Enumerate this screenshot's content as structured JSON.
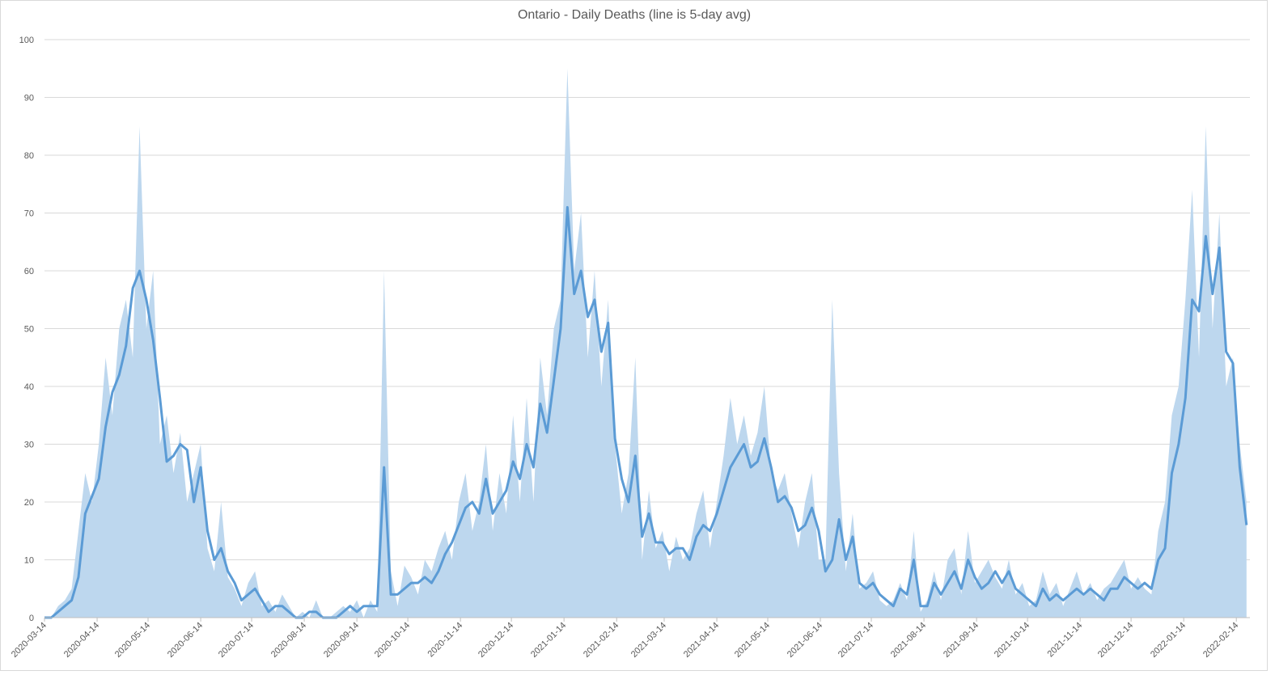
{
  "chart_data": {
    "type": "line",
    "title": "Ontario - Daily Deaths (line is 5-day avg)",
    "x": [
      "2020-03-14",
      "2020-03-18",
      "2020-03-22",
      "2020-03-26",
      "2020-03-30",
      "2020-04-03",
      "2020-04-07",
      "2020-04-11",
      "2020-04-15",
      "2020-04-19",
      "2020-04-23",
      "2020-04-27",
      "2020-05-01",
      "2020-05-05",
      "2020-05-09",
      "2020-05-13",
      "2020-05-17",
      "2020-05-21",
      "2020-05-25",
      "2020-05-29",
      "2020-06-02",
      "2020-06-06",
      "2020-06-10",
      "2020-06-14",
      "2020-06-18",
      "2020-06-22",
      "2020-06-26",
      "2020-06-30",
      "2020-07-04",
      "2020-07-08",
      "2020-07-12",
      "2020-07-16",
      "2020-07-20",
      "2020-07-24",
      "2020-07-28",
      "2020-08-01",
      "2020-08-05",
      "2020-08-09",
      "2020-08-13",
      "2020-08-17",
      "2020-08-21",
      "2020-08-25",
      "2020-08-29",
      "2020-09-02",
      "2020-09-06",
      "2020-09-10",
      "2020-09-14",
      "2020-09-18",
      "2020-09-22",
      "2020-09-26",
      "2020-09-30",
      "2020-10-04",
      "2020-10-08",
      "2020-10-12",
      "2020-10-16",
      "2020-10-20",
      "2020-10-24",
      "2020-10-28",
      "2020-11-01",
      "2020-11-05",
      "2020-11-09",
      "2020-11-13",
      "2020-11-17",
      "2020-11-21",
      "2020-11-25",
      "2020-11-29",
      "2020-12-03",
      "2020-12-07",
      "2020-12-11",
      "2020-12-15",
      "2020-12-19",
      "2020-12-23",
      "2020-12-27",
      "2020-12-31",
      "2021-01-04",
      "2021-01-08",
      "2021-01-12",
      "2021-01-16",
      "2021-01-20",
      "2021-01-24",
      "2021-01-28",
      "2021-02-01",
      "2021-02-05",
      "2021-02-09",
      "2021-02-13",
      "2021-02-17",
      "2021-02-21",
      "2021-02-25",
      "2021-03-01",
      "2021-03-05",
      "2021-03-09",
      "2021-03-13",
      "2021-03-17",
      "2021-03-21",
      "2021-03-25",
      "2021-03-29",
      "2021-04-02",
      "2021-04-06",
      "2021-04-10",
      "2021-04-14",
      "2021-04-18",
      "2021-04-22",
      "2021-04-26",
      "2021-04-30",
      "2021-05-04",
      "2021-05-08",
      "2021-05-12",
      "2021-05-16",
      "2021-05-20",
      "2021-05-24",
      "2021-05-28",
      "2021-06-01",
      "2021-06-05",
      "2021-06-09",
      "2021-06-13",
      "2021-06-17",
      "2021-06-21",
      "2021-06-25",
      "2021-06-29",
      "2021-07-03",
      "2021-07-07",
      "2021-07-11",
      "2021-07-15",
      "2021-07-19",
      "2021-07-23",
      "2021-07-27",
      "2021-07-31",
      "2021-08-04",
      "2021-08-08",
      "2021-08-12",
      "2021-08-16",
      "2021-08-20",
      "2021-08-24",
      "2021-08-28",
      "2021-09-01",
      "2021-09-05",
      "2021-09-09",
      "2021-09-13",
      "2021-09-17",
      "2021-09-21",
      "2021-09-25",
      "2021-09-29",
      "2021-10-03",
      "2021-10-07",
      "2021-10-11",
      "2021-10-15",
      "2021-10-19",
      "2021-10-23",
      "2021-10-27",
      "2021-10-31",
      "2021-11-04",
      "2021-11-08",
      "2021-11-12",
      "2021-11-16",
      "2021-11-20",
      "2021-11-24",
      "2021-11-28",
      "2021-12-02",
      "2021-12-06",
      "2021-12-10",
      "2021-12-14",
      "2021-12-18",
      "2021-12-22",
      "2021-12-26",
      "2021-12-30",
      "2022-01-03",
      "2022-01-07",
      "2022-01-11",
      "2022-01-15",
      "2022-01-19",
      "2022-01-23",
      "2022-01-27",
      "2022-01-31",
      "2022-02-04",
      "2022-02-08",
      "2022-02-12",
      "2022-02-16",
      "2022-02-20"
    ],
    "series": [
      {
        "type": "area",
        "color": "#bdd7ee",
        "values": [
          0,
          0,
          2,
          3,
          5,
          15,
          25,
          20,
          30,
          45,
          35,
          50,
          55,
          45,
          85,
          50,
          60,
          30,
          35,
          25,
          32,
          20,
          25,
          30,
          12,
          8,
          20,
          7,
          5,
          2,
          6,
          8,
          2,
          3,
          1,
          4,
          2,
          0,
          1,
          0,
          3,
          0,
          0,
          1,
          2,
          1,
          3,
          0,
          3,
          1,
          60,
          8,
          2,
          9,
          7,
          4,
          10,
          8,
          12,
          15,
          10,
          20,
          25,
          15,
          20,
          30,
          15,
          25,
          18,
          35,
          20,
          38,
          20,
          45,
          35,
          50,
          55,
          95,
          60,
          70,
          45,
          60,
          40,
          55,
          30,
          18,
          25,
          45,
          10,
          22,
          12,
          15,
          8,
          14,
          10,
          12,
          18,
          22,
          12,
          20,
          28,
          38,
          30,
          35,
          28,
          32,
          40,
          25,
          22,
          25,
          18,
          12,
          20,
          25,
          10,
          10,
          55,
          25,
          8,
          18,
          5,
          6,
          8,
          3,
          2,
          3,
          6,
          3,
          15,
          1,
          3,
          8,
          3,
          10,
          12,
          4,
          15,
          6,
          8,
          10,
          7,
          5,
          10,
          4,
          6,
          2,
          3,
          8,
          4,
          6,
          2,
          5,
          8,
          4,
          6,
          3,
          5,
          6,
          8,
          10,
          5,
          7,
          5,
          4,
          15,
          20,
          35,
          40,
          55,
          74,
          45,
          85,
          50,
          70,
          40,
          45,
          30,
          20
        ]
      },
      {
        "type": "line",
        "color": "#5b9bd5",
        "values": [
          0,
          0,
          1,
          2,
          3,
          7,
          18,
          21,
          24,
          33,
          39,
          42,
          47,
          57,
          60,
          55,
          48,
          38,
          27,
          28,
          30,
          29,
          20,
          26,
          15,
          10,
          12,
          8,
          6,
          3,
          4,
          5,
          3,
          1,
          2,
          2,
          1,
          0,
          0,
          1,
          1,
          0,
          0,
          0,
          1,
          2,
          1,
          2,
          2,
          2,
          26,
          4,
          4,
          5,
          6,
          6,
          7,
          6,
          8,
          11,
          13,
          16,
          19,
          20,
          18,
          24,
          18,
          20,
          22,
          27,
          24,
          30,
          26,
          37,
          32,
          41,
          50,
          71,
          56,
          60,
          52,
          55,
          46,
          51,
          31,
          24,
          20,
          28,
          14,
          18,
          13,
          13,
          11,
          12,
          12,
          10,
          14,
          16,
          15,
          18,
          22,
          26,
          28,
          30,
          26,
          27,
          31,
          26,
          20,
          21,
          19,
          15,
          16,
          19,
          15,
          8,
          10,
          17,
          10,
          14,
          6,
          5,
          6,
          4,
          3,
          2,
          5,
          4,
          10,
          2,
          2,
          6,
          4,
          6,
          8,
          5,
          10,
          7,
          5,
          6,
          8,
          6,
          8,
          5,
          4,
          3,
          2,
          5,
          3,
          4,
          3,
          4,
          5,
          4,
          5,
          4,
          3,
          5,
          5,
          7,
          6,
          5,
          6,
          5,
          10,
          12,
          25,
          30,
          38,
          55,
          53,
          66,
          56,
          64,
          46,
          44,
          26,
          16
        ]
      }
    ],
    "xlim": [
      "2020-03-14",
      "2022-02-22"
    ],
    "xticks": [
      "2020-03-14",
      "2020-04-14",
      "2020-05-14",
      "2020-06-14",
      "2020-07-14",
      "2020-08-14",
      "2020-09-14",
      "2020-10-14",
      "2020-11-14",
      "2020-12-14",
      "2021-01-14",
      "2021-02-14",
      "2021-03-14",
      "2021-04-14",
      "2021-05-14",
      "2021-06-14",
      "2021-07-14",
      "2021-08-14",
      "2021-09-14",
      "2021-10-14",
      "2021-11-14",
      "2021-12-14",
      "2022-01-14",
      "2022-02-14"
    ],
    "ylim": [
      0,
      100
    ],
    "yticks": [
      0,
      10,
      20,
      30,
      40,
      50,
      60,
      70,
      80,
      90,
      100
    ],
    "grid": true
  }
}
